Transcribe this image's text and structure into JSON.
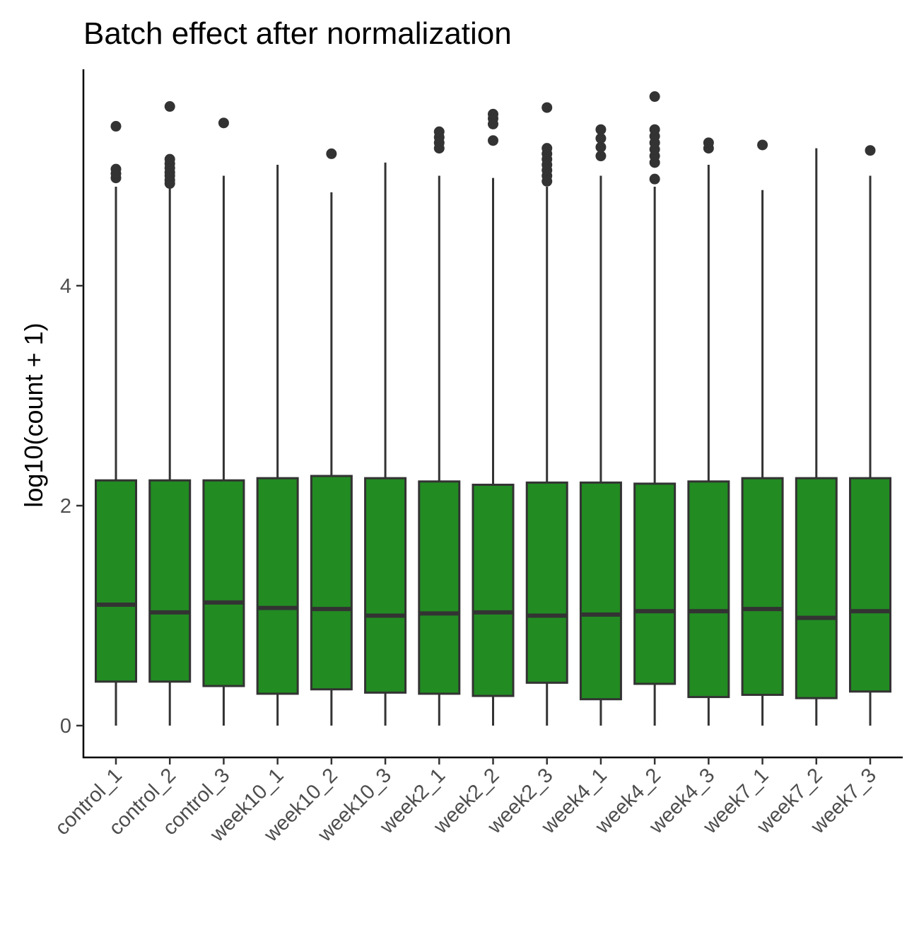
{
  "chart_data": {
    "type": "boxplot",
    "title": "Batch effect after normalization",
    "xlabel": "",
    "ylabel": "log10(count + 1)",
    "ylim": [
      -0.27,
      6.0
    ],
    "yticks": [
      0,
      2,
      4
    ],
    "grid": false,
    "legend": "none",
    "colors": {
      "box_fill": "#228B22",
      "box_line": "#333333",
      "outlier": "#333333",
      "axis": "#000000"
    },
    "categories": [
      "control_1",
      "control_2",
      "control_3",
      "week10_1",
      "week10_2",
      "week10_3",
      "week2_1",
      "week2_2",
      "week2_3",
      "week4_1",
      "week4_2",
      "week4_3",
      "week7_1",
      "week7_2",
      "week7_3"
    ],
    "boxes": [
      {
        "category": "control_1",
        "min": 0,
        "q1": 0.4,
        "median": 1.1,
        "q3": 2.23,
        "max": 4.9,
        "outliers": [
          4.98,
          5.02,
          5.06,
          5.45
        ]
      },
      {
        "category": "control_2",
        "min": 0,
        "q1": 0.4,
        "median": 1.03,
        "q3": 2.23,
        "max": 4.9,
        "outliers": [
          4.93,
          4.96,
          5.0,
          5.03,
          5.07,
          5.11,
          5.15,
          5.63
        ]
      },
      {
        "category": "control_3",
        "min": 0,
        "q1": 0.36,
        "median": 1.12,
        "q3": 2.23,
        "max": 5.0,
        "outliers": [
          5.48
        ]
      },
      {
        "category": "week10_1",
        "min": 0,
        "q1": 0.29,
        "median": 1.07,
        "q3": 2.25,
        "max": 5.1,
        "outliers": []
      },
      {
        "category": "week10_2",
        "min": 0,
        "q1": 0.33,
        "median": 1.06,
        "q3": 2.27,
        "max": 4.85,
        "outliers": [
          5.2
        ]
      },
      {
        "category": "week10_3",
        "min": 0,
        "q1": 0.3,
        "median": 1.0,
        "q3": 2.25,
        "max": 5.12,
        "outliers": []
      },
      {
        "category": "week2_1",
        "min": 0,
        "q1": 0.29,
        "median": 1.02,
        "q3": 2.22,
        "max": 5.0,
        "outliers": [
          5.25,
          5.3,
          5.35,
          5.4
        ]
      },
      {
        "category": "week2_2",
        "min": 0,
        "q1": 0.27,
        "median": 1.03,
        "q3": 2.19,
        "max": 4.98,
        "outliers": [
          5.32,
          5.47,
          5.52,
          5.56
        ]
      },
      {
        "category": "week2_3",
        "min": 0,
        "q1": 0.39,
        "median": 1.0,
        "q3": 2.21,
        "max": 4.9,
        "outliers": [
          4.95,
          5.0,
          5.05,
          5.1,
          5.15,
          5.2,
          5.25,
          5.62
        ]
      },
      {
        "category": "week4_1",
        "min": 0,
        "q1": 0.24,
        "median": 1.01,
        "q3": 2.21,
        "max": 5.0,
        "outliers": [
          5.18,
          5.26,
          5.34,
          5.42
        ]
      },
      {
        "category": "week4_2",
        "min": 0,
        "q1": 0.38,
        "median": 1.04,
        "q3": 2.2,
        "max": 4.9,
        "outliers": [
          4.97,
          5.12,
          5.18,
          5.24,
          5.3,
          5.36,
          5.42,
          5.72
        ]
      },
      {
        "category": "week4_3",
        "min": 0,
        "q1": 0.26,
        "median": 1.04,
        "q3": 2.22,
        "max": 5.1,
        "outliers": [
          5.25,
          5.3
        ]
      },
      {
        "category": "week7_1",
        "min": 0,
        "q1": 0.28,
        "median": 1.06,
        "q3": 2.25,
        "max": 4.87,
        "outliers": [
          5.28
        ]
      },
      {
        "category": "week7_2",
        "min": 0,
        "q1": 0.25,
        "median": 0.98,
        "q3": 2.25,
        "max": 5.25,
        "outliers": []
      },
      {
        "category": "week7_3",
        "min": 0,
        "q1": 0.31,
        "median": 1.04,
        "q3": 2.25,
        "max": 5.0,
        "outliers": [
          5.23
        ]
      }
    ]
  }
}
